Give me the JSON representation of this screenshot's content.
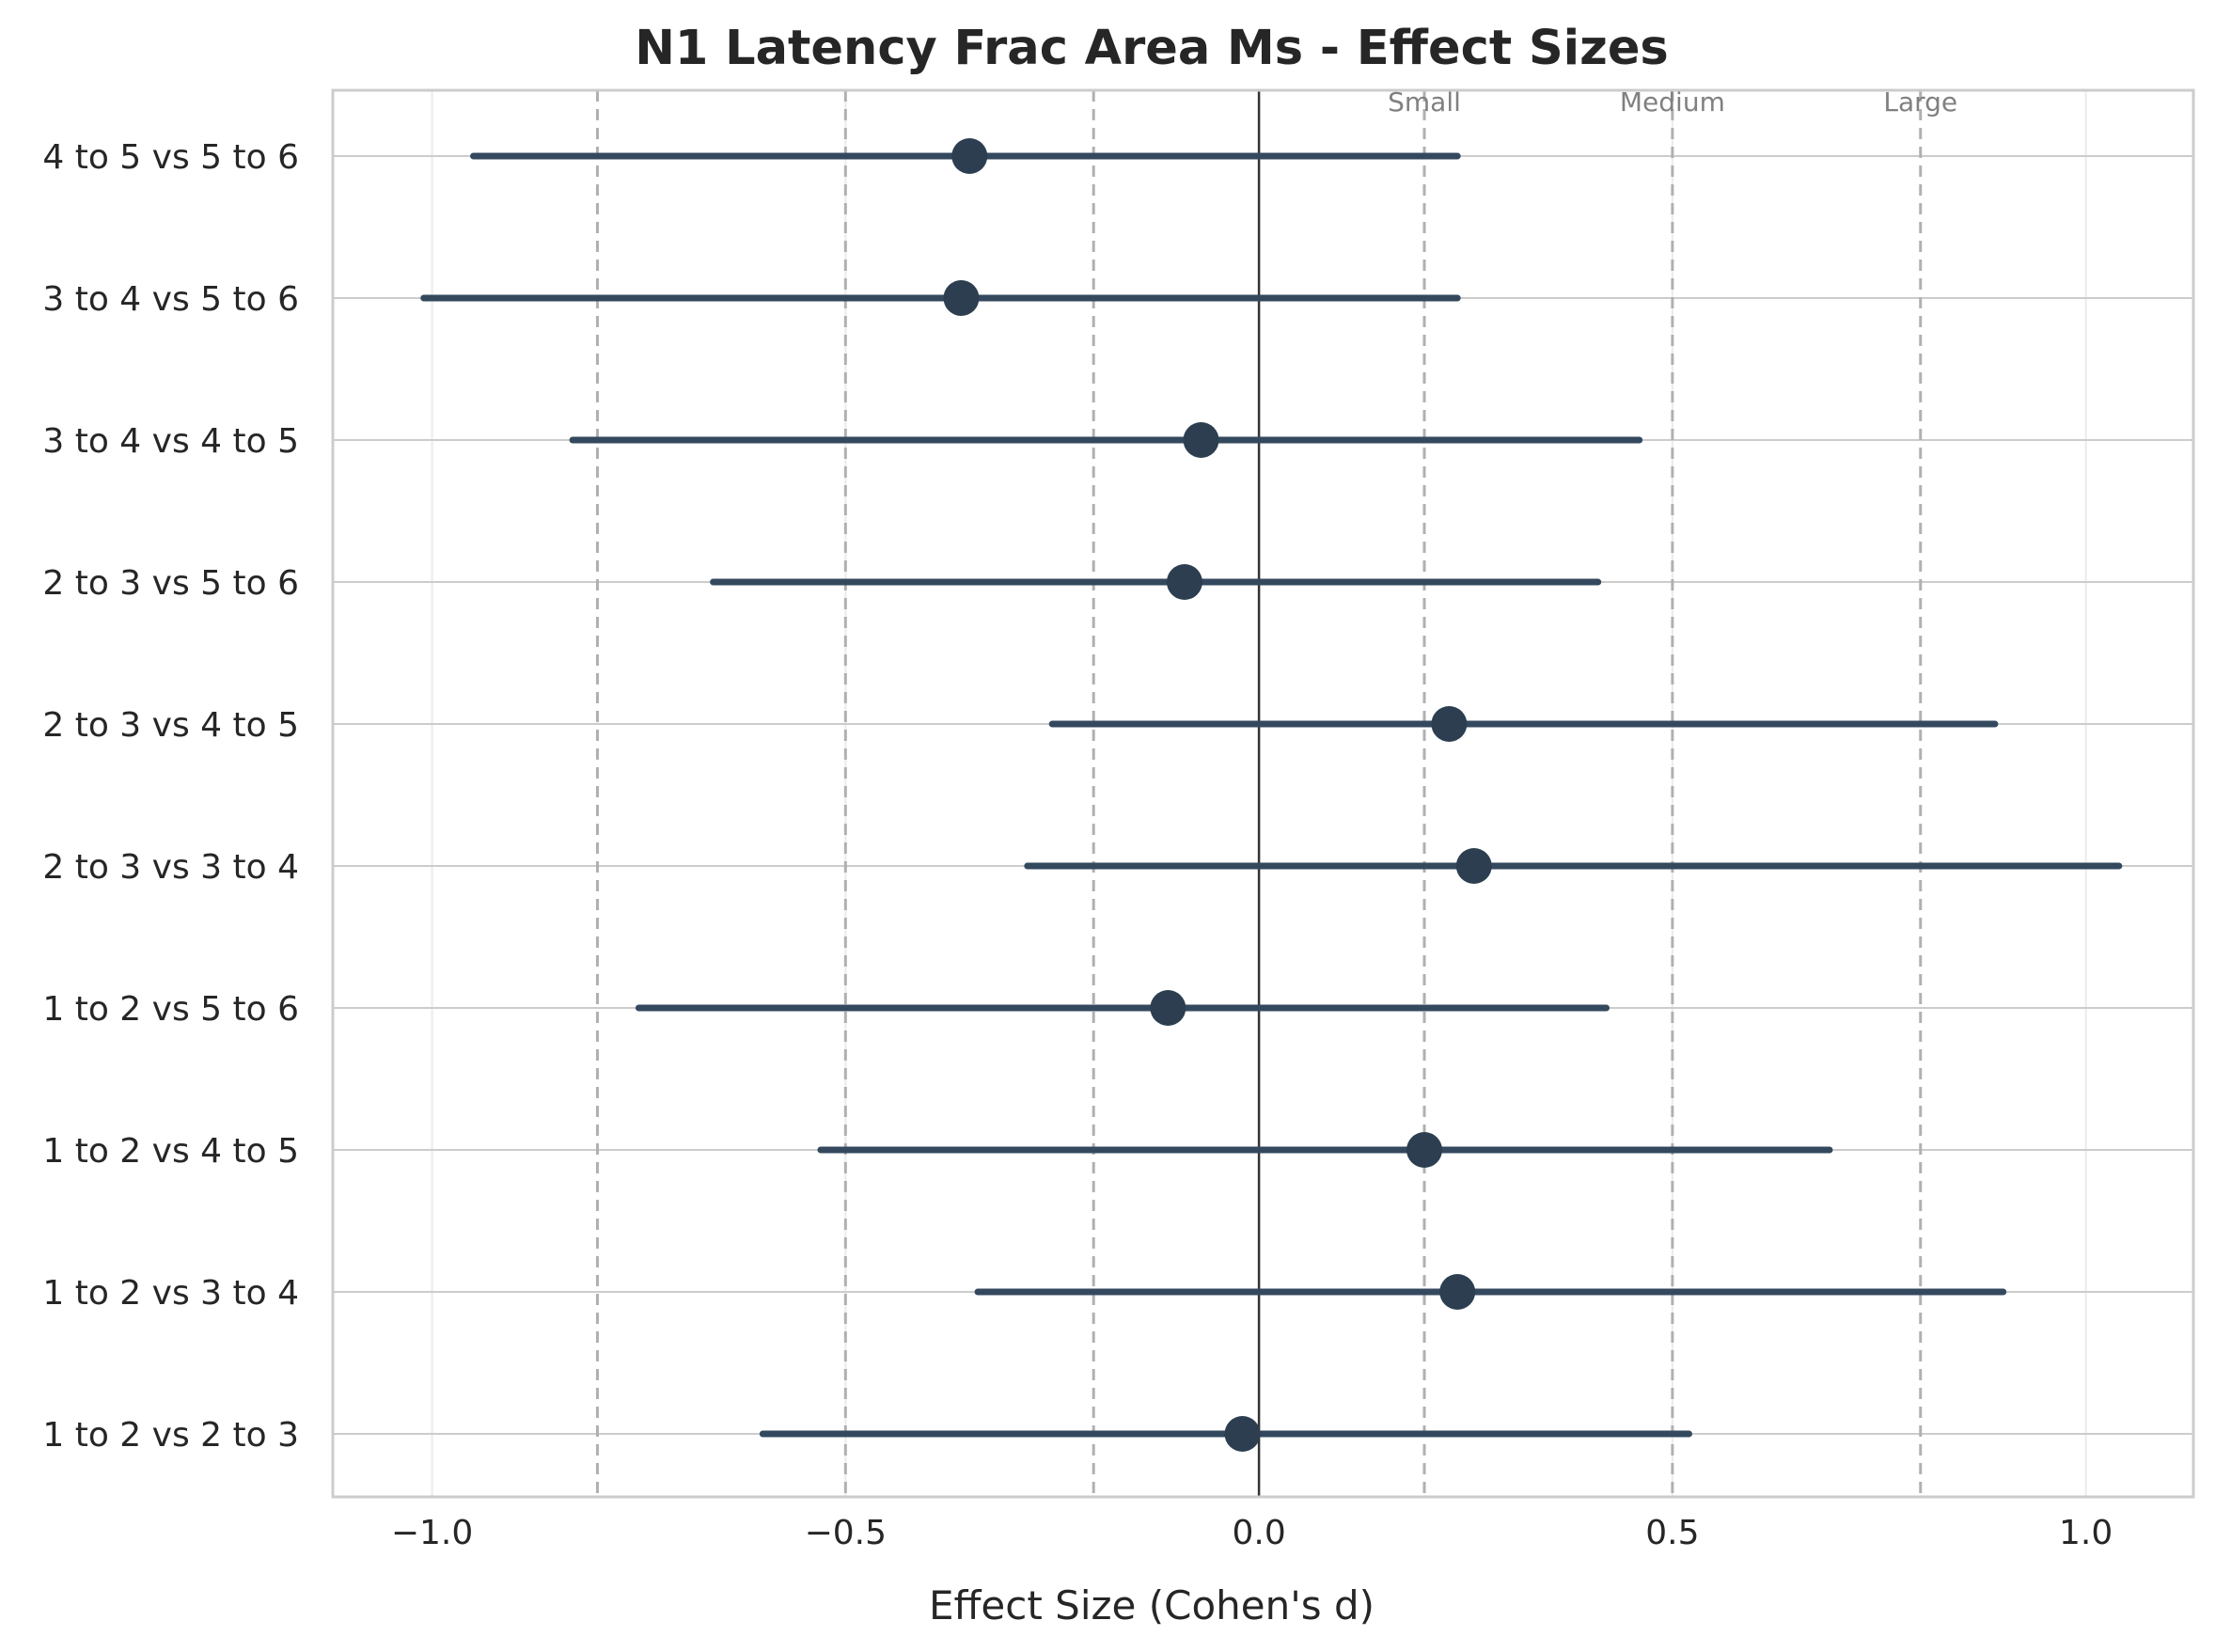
{
  "chart_data": {
    "type": "forest",
    "title": "N1 Latency Frac Area Ms - Effect Sizes",
    "xlabel": "Effect Size (Cohen's d)",
    "ylabel": "",
    "xlim": [
      -1.12,
      1.13
    ],
    "xticks": [
      {
        "value": -1.0,
        "label": "−1.0"
      },
      {
        "value": -0.5,
        "label": "−0.5"
      },
      {
        "value": 0.0,
        "label": "0.0"
      },
      {
        "value": 0.5,
        "label": "0.5"
      },
      {
        "value": 1.0,
        "label": "1.0"
      }
    ],
    "grid": true,
    "reference_line": 0.0,
    "thresholds": [
      {
        "value": -0.8,
        "label": ""
      },
      {
        "value": -0.5,
        "label": ""
      },
      {
        "value": -0.2,
        "label": ""
      },
      {
        "value": 0.2,
        "label": "Small"
      },
      {
        "value": 0.5,
        "label": "Medium"
      },
      {
        "value": 0.8,
        "label": "Large"
      }
    ],
    "comparisons": [
      {
        "label": "4 to 5 vs 5 to 6",
        "d": -0.35,
        "ci_low": -0.95,
        "ci_high": 0.24
      },
      {
        "label": "3 to 4 vs 5 to 6",
        "d": -0.36,
        "ci_low": -1.01,
        "ci_high": 0.24
      },
      {
        "label": "3 to 4 vs 4 to 5",
        "d": -0.07,
        "ci_low": -0.83,
        "ci_high": 0.46
      },
      {
        "label": "2 to 3 vs 5 to 6",
        "d": -0.09,
        "ci_low": -0.66,
        "ci_high": 0.41
      },
      {
        "label": "2 to 3 vs 4 to 5",
        "d": 0.23,
        "ci_low": -0.25,
        "ci_high": 0.89
      },
      {
        "label": "2 to 3 vs 3 to 4",
        "d": 0.26,
        "ci_low": -0.28,
        "ci_high": 1.04
      },
      {
        "label": "1 to 2 vs 5 to 6",
        "d": -0.11,
        "ci_low": -0.75,
        "ci_high": 0.42
      },
      {
        "label": "1 to 2 vs 4 to 5",
        "d": 0.2,
        "ci_low": -0.53,
        "ci_high": 0.69
      },
      {
        "label": "1 to 2 vs 3 to 4",
        "d": 0.24,
        "ci_low": -0.34,
        "ci_high": 0.9
      },
      {
        "label": "1 to 2 vs 2 to 3",
        "d": -0.02,
        "ci_low": -0.6,
        "ci_high": 0.52
      }
    ],
    "colors": {
      "line": "#34495e",
      "point": "#2c3e50",
      "grid": "#cccccc",
      "threshold": "#b0b0b0",
      "reference": "#333333",
      "threshold_text": "#808080"
    }
  }
}
